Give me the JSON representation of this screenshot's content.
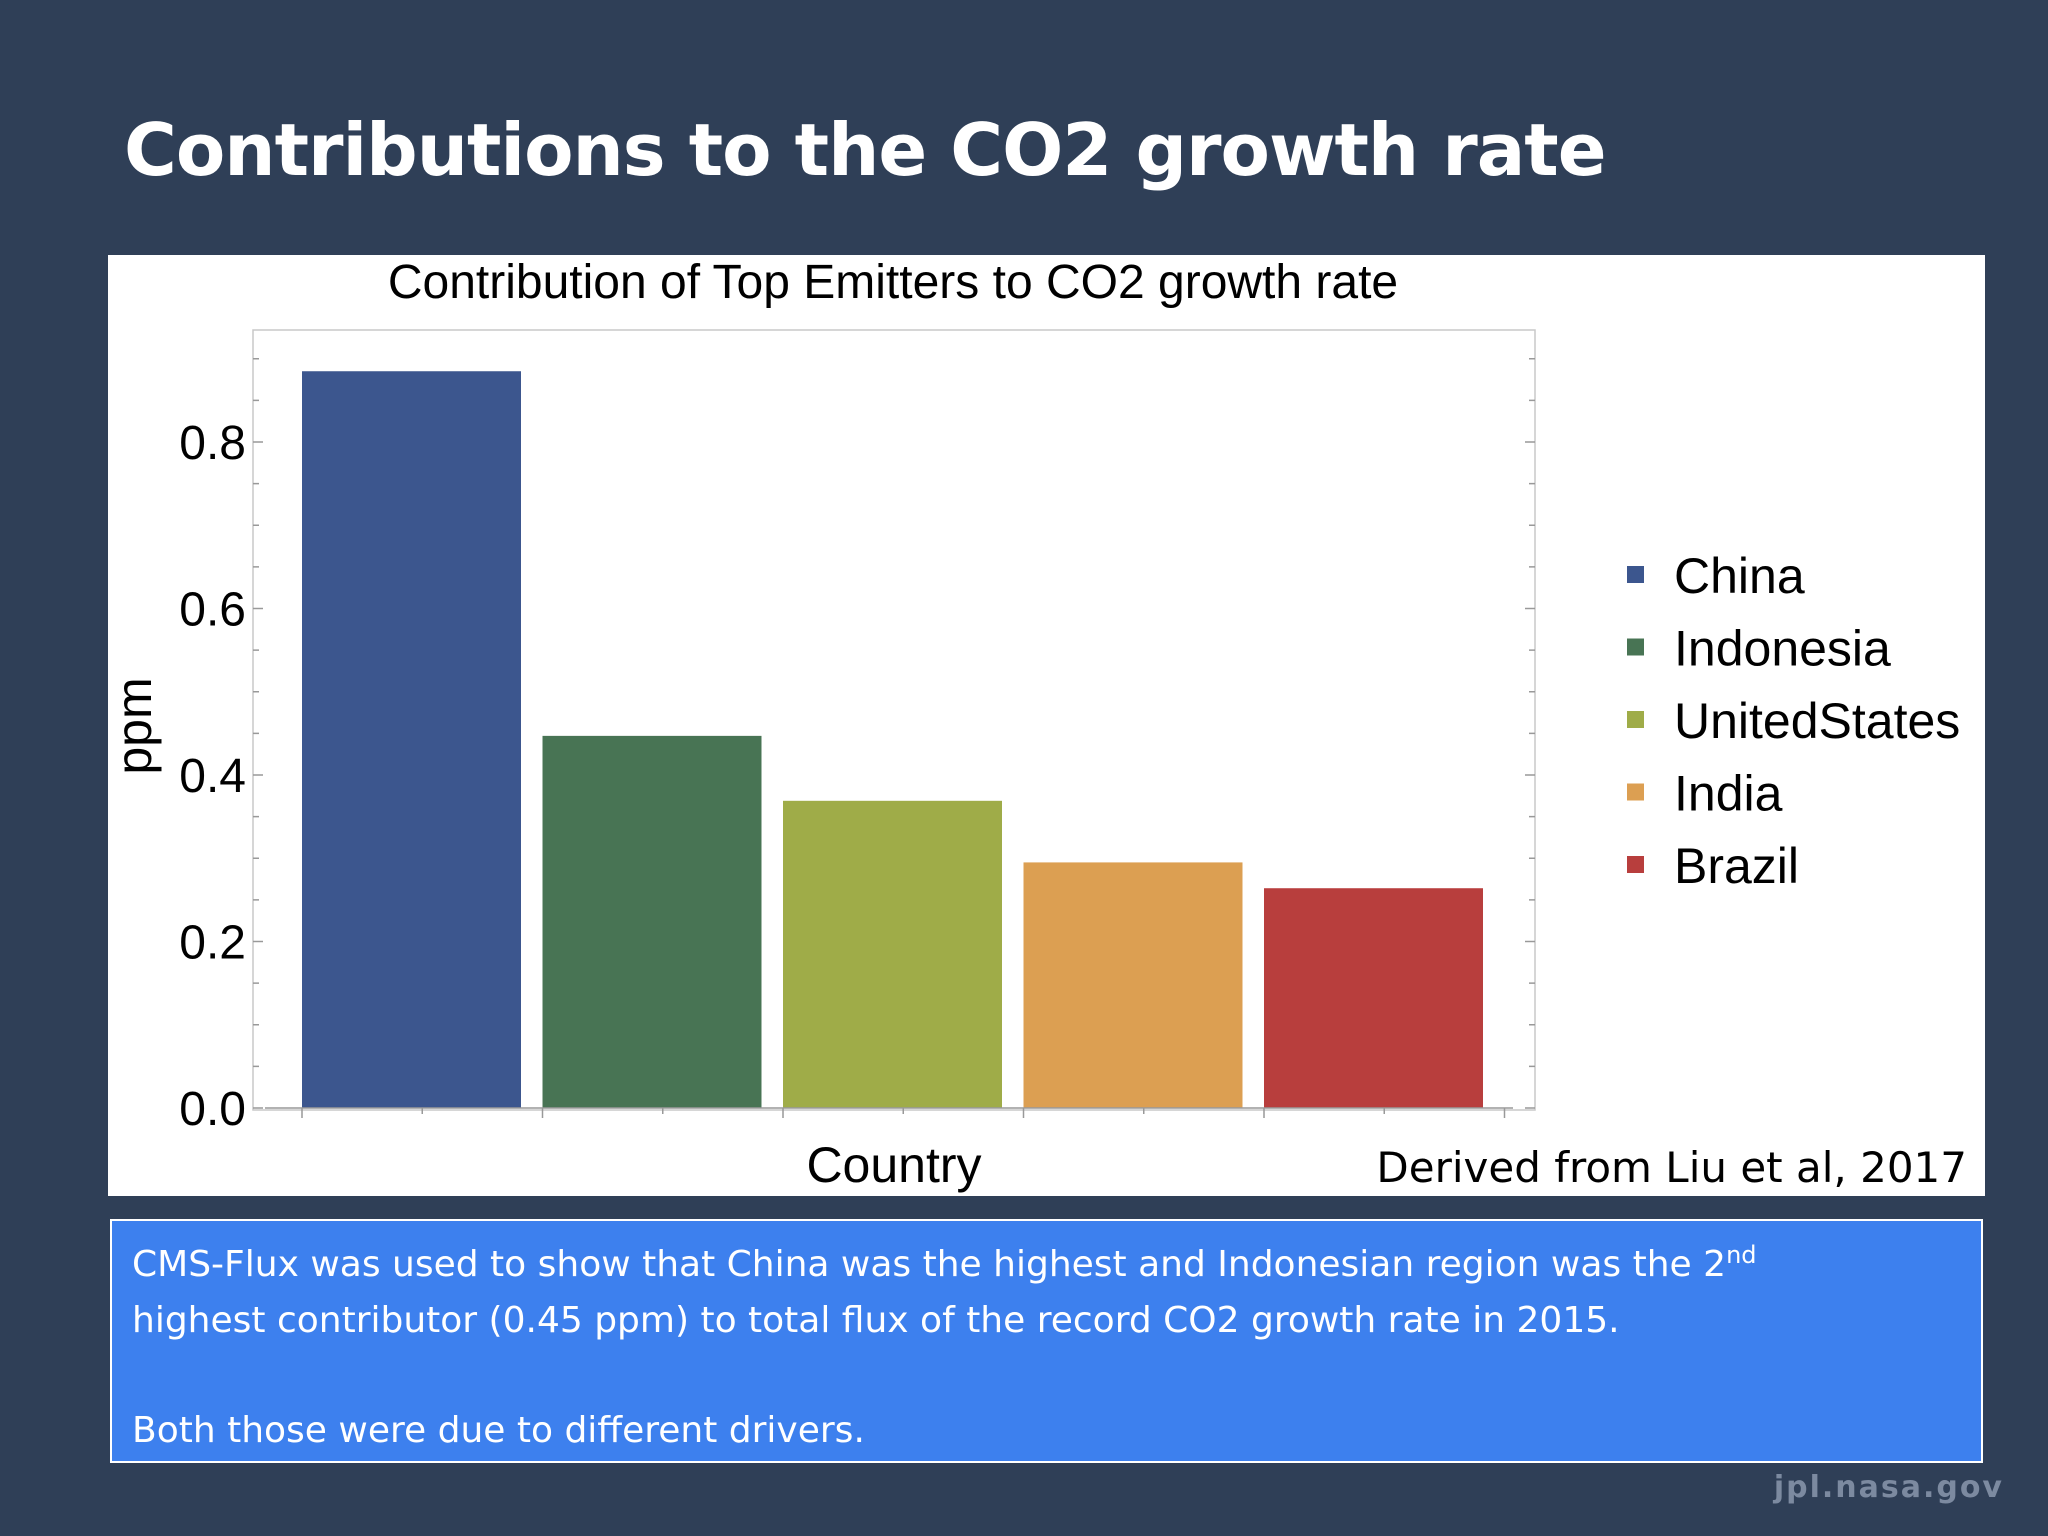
{
  "slide": {
    "title": "Contributions to the CO2 growth rate",
    "footer_brand": "jpl.nasa.gov"
  },
  "chart_data": {
    "type": "bar",
    "title": "Contribution of Top Emitters to  CO2 growth rate",
    "xlabel": "Country",
    "ylabel": "ppm",
    "categories": [
      "China",
      "Indonesia",
      "UnitedStates",
      "India",
      "Brazil"
    ],
    "values": [
      0.885,
      0.447,
      0.369,
      0.295,
      0.264
    ],
    "colors": [
      "#3c568e",
      "#487454",
      "#9fac48",
      "#dc9f52",
      "#b83e3d"
    ],
    "yticks": [
      "0.0",
      "0.2",
      "0.4",
      "0.6",
      "0.8"
    ],
    "ylim": [
      0,
      0.93
    ],
    "legend": {
      "position": "right",
      "entries": [
        "China",
        "Indonesia",
        "UnitedStates",
        "India",
        "Brazil"
      ]
    },
    "grid": false,
    "source_note": "Derived from Liu et al, 2017"
  },
  "caption": {
    "line1_main": "CMS-Flux was used to show that China was the highest and Indonesian region was the 2",
    "line1_sup": "nd",
    "line2": "highest contributor (0.45 ppm) to total flux of the record CO2 growth rate in 2015.",
    "line3": "Both those were due to different drivers."
  }
}
